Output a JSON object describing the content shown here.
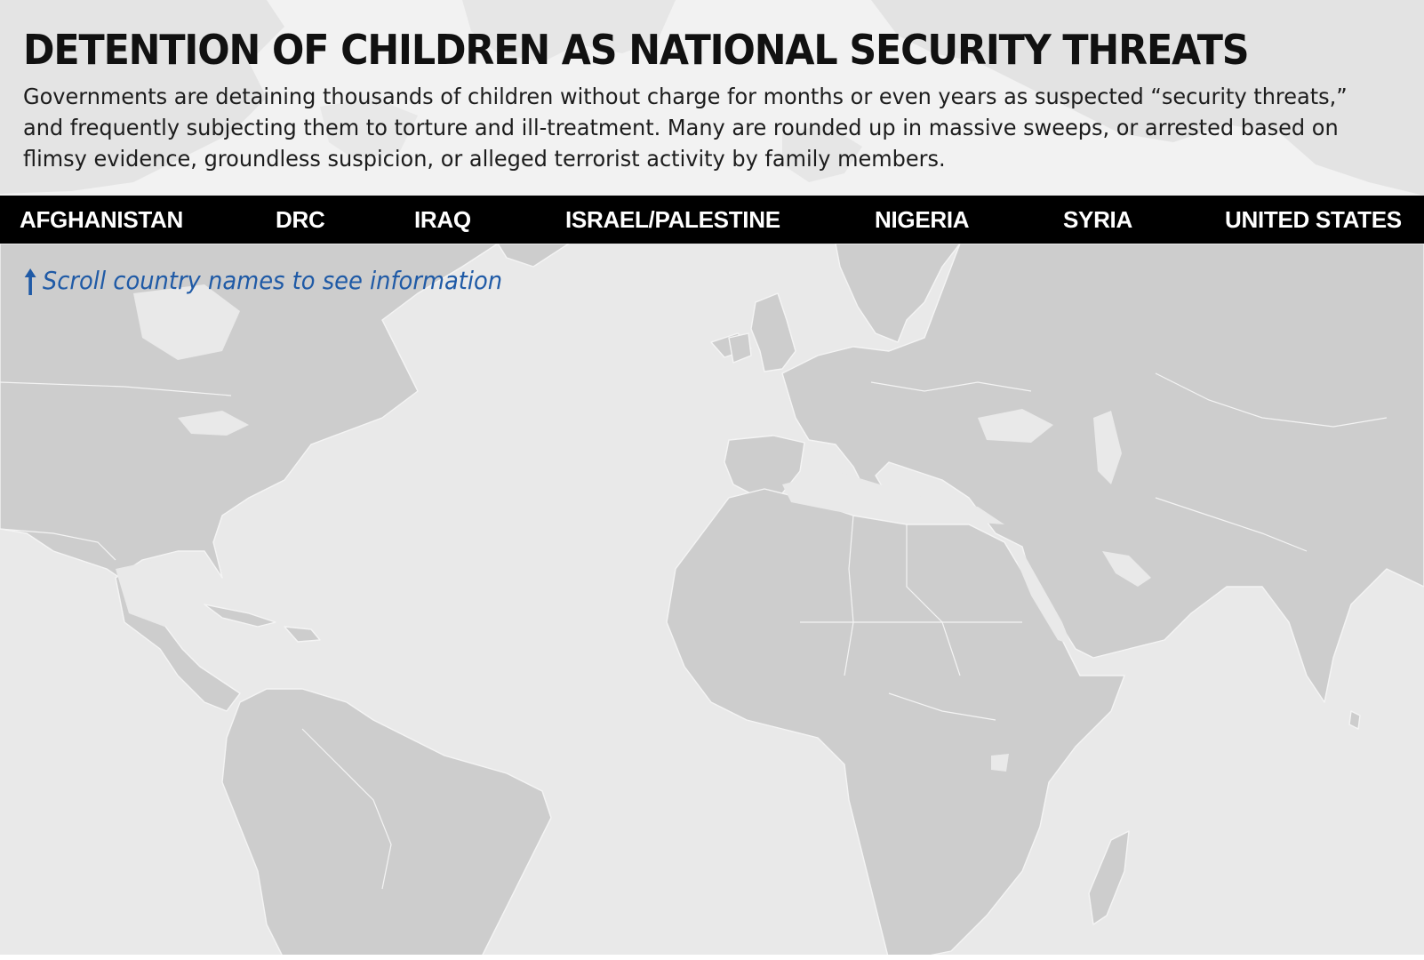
{
  "header": {
    "title": "DETENTION OF CHILDREN AS NATIONAL SECURITY THREATS",
    "description": "Governments are detaining thousands of children without charge for months or even years as suspected “security threats,” and frequently subjecting them to torture and ill-treatment. Many are rounded up in massive sweeps, or arrested based on flimsy evidence, groundless suspicion, or alleged terrorist activity by family members."
  },
  "nav": {
    "countries": [
      {
        "label": "AFGHANISTAN"
      },
      {
        "label": "DRC"
      },
      {
        "label": "IRAQ"
      },
      {
        "label": "ISRAEL/PALESTINE"
      },
      {
        "label": "NIGERIA"
      },
      {
        "label": "SYRIA"
      },
      {
        "label": "UNITED STATES"
      }
    ]
  },
  "hint": {
    "arrow_icon": "up-arrow-icon",
    "text": "Scroll country names to see information"
  },
  "colors": {
    "nav_background": "#000000",
    "nav_text": "#ffffff",
    "hint_text": "#1f5aa6",
    "land": "#cdcdcd",
    "ocean": "#e9e9e9",
    "borders": "#f4f4f4"
  }
}
